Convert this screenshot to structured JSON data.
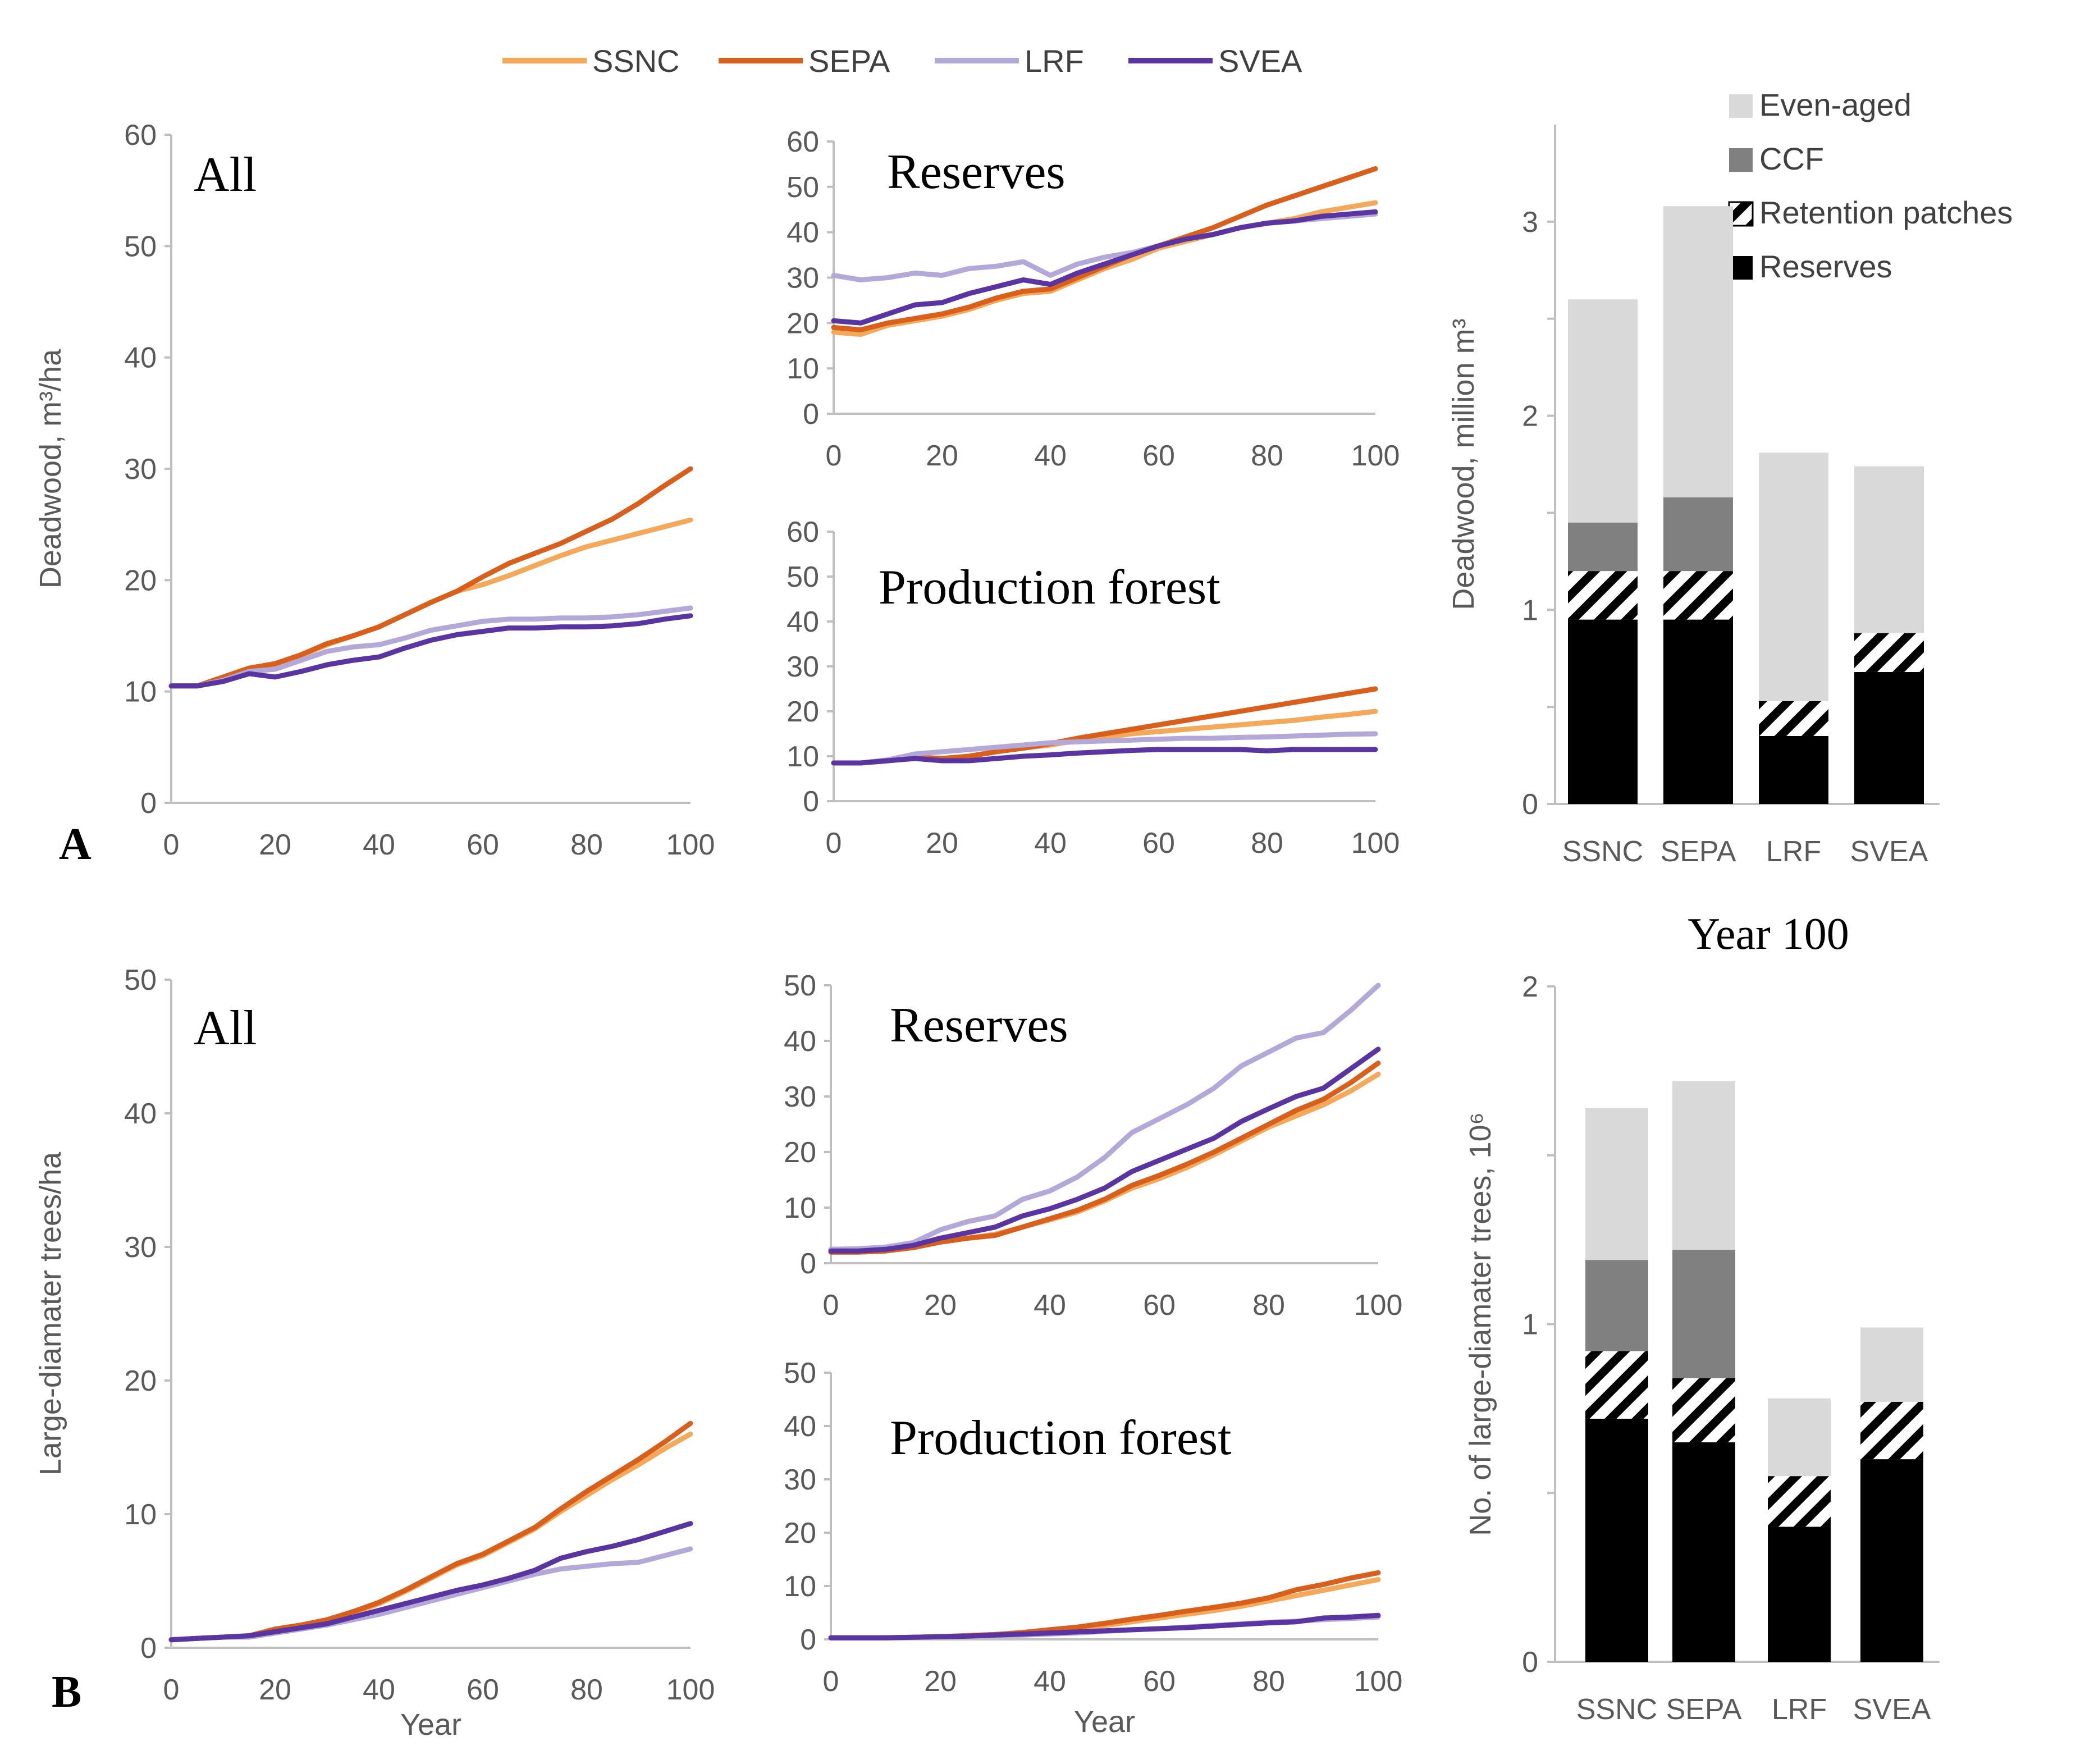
{
  "colors": {
    "SSNC": "#f4a85a",
    "SEPA": "#d9601c",
    "LRF": "#b4a8d8",
    "SVEA": "#5a34a0",
    "Even-aged": "#d9d9d9",
    "CCF": "#808080",
    "Retention patches": "#000000",
    "Reserves": "#000000"
  },
  "legend": {
    "series": [
      "SSNC",
      "SEPA",
      "LRF",
      "SVEA"
    ],
    "bar_components": [
      "Even-aged",
      "CCF",
      "Retention patches",
      "Reserves"
    ]
  },
  "panel_letters": {
    "a": "A",
    "b": "B"
  },
  "chart_data": [
    {
      "id": "a_all",
      "type": "line",
      "title": "All",
      "xlabel": "",
      "ylabel": "Deadwood, m³/ha",
      "xlim": [
        0,
        100
      ],
      "ylim": [
        0,
        60
      ],
      "xticks": [
        0,
        20,
        40,
        60,
        80,
        100
      ],
      "yticks": [
        0,
        10,
        20,
        30,
        40,
        50,
        60
      ],
      "x": [
        0,
        5,
        10,
        15,
        20,
        25,
        30,
        35,
        40,
        45,
        50,
        55,
        60,
        65,
        70,
        75,
        80,
        85,
        90,
        95,
        100
      ],
      "series": [
        {
          "name": "SSNC",
          "values": [
            10.5,
            10.5,
            11.2,
            12.0,
            12.4,
            13.2,
            14.2,
            15.0,
            15.8,
            16.9,
            18.0,
            19.0,
            19.6,
            20.4,
            21.3,
            22.2,
            23.0,
            23.6,
            24.2,
            24.8,
            25.4
          ]
        },
        {
          "name": "SEPA",
          "values": [
            10.5,
            10.5,
            11.3,
            12.1,
            12.5,
            13.3,
            14.3,
            15.0,
            15.8,
            16.9,
            18.0,
            19.0,
            20.3,
            21.5,
            22.4,
            23.3,
            24.4,
            25.5,
            26.9,
            28.5,
            30.0
          ]
        },
        {
          "name": "LRF",
          "values": [
            10.5,
            10.5,
            11.0,
            11.8,
            12.0,
            12.8,
            13.6,
            14.0,
            14.2,
            14.8,
            15.5,
            15.9,
            16.3,
            16.5,
            16.5,
            16.6,
            16.6,
            16.7,
            16.9,
            17.2,
            17.5
          ]
        },
        {
          "name": "SVEA",
          "values": [
            10.5,
            10.5,
            10.9,
            11.6,
            11.3,
            11.8,
            12.4,
            12.8,
            13.1,
            13.9,
            14.6,
            15.1,
            15.4,
            15.7,
            15.7,
            15.8,
            15.8,
            15.9,
            16.1,
            16.5,
            16.8
          ]
        }
      ]
    },
    {
      "id": "a_reserves",
      "type": "line",
      "title": "Reserves",
      "xlim": [
        0,
        100
      ],
      "ylim": [
        0,
        60
      ],
      "xticks": [
        0,
        20,
        40,
        60,
        80,
        100
      ],
      "yticks": [
        0,
        10,
        20,
        30,
        40,
        50,
        60
      ],
      "x": [
        0,
        5,
        10,
        15,
        20,
        25,
        30,
        35,
        40,
        45,
        50,
        55,
        60,
        65,
        70,
        75,
        80,
        85,
        90,
        95,
        100
      ],
      "series": [
        {
          "name": "SSNC",
          "values": [
            18.0,
            17.5,
            19.5,
            20.5,
            21.5,
            23.0,
            25.0,
            26.5,
            27.0,
            29.5,
            32.0,
            34.0,
            36.5,
            38.0,
            39.5,
            41.0,
            42.0,
            43.0,
            44.5,
            45.5,
            46.5
          ]
        },
        {
          "name": "SEPA",
          "values": [
            19.0,
            18.5,
            20.0,
            21.0,
            22.0,
            23.5,
            25.5,
            27.0,
            27.5,
            30.0,
            32.5,
            35.0,
            37.0,
            39.0,
            41.0,
            43.5,
            46.0,
            48.0,
            50.0,
            52.0,
            54.0
          ]
        },
        {
          "name": "LRF",
          "values": [
            30.5,
            29.5,
            30.0,
            31.0,
            30.5,
            32.0,
            32.5,
            33.5,
            30.5,
            33.0,
            34.5,
            35.5,
            37.0,
            38.5,
            39.5,
            41.0,
            42.0,
            42.5,
            43.0,
            43.5,
            44.0
          ]
        },
        {
          "name": "SVEA",
          "values": [
            20.5,
            20.0,
            22.0,
            24.0,
            24.5,
            26.5,
            28.0,
            29.5,
            28.5,
            31.0,
            33.0,
            35.0,
            37.0,
            38.5,
            39.5,
            41.0,
            42.0,
            42.5,
            43.5,
            44.0,
            44.5
          ]
        }
      ]
    },
    {
      "id": "a_production",
      "type": "line",
      "title": "Production forest",
      "xlim": [
        0,
        100
      ],
      "ylim": [
        0,
        60
      ],
      "xticks": [
        0,
        20,
        40,
        60,
        80,
        100
      ],
      "yticks": [
        0,
        10,
        20,
        30,
        40,
        50,
        60
      ],
      "x": [
        0,
        5,
        10,
        15,
        20,
        25,
        30,
        35,
        40,
        45,
        50,
        55,
        60,
        65,
        70,
        75,
        80,
        85,
        90,
        95,
        100
      ],
      "series": [
        {
          "name": "SSNC",
          "values": [
            8.5,
            8.5,
            9.0,
            9.8,
            9.5,
            10.0,
            11.0,
            11.8,
            12.5,
            13.5,
            14.2,
            15.0,
            15.5,
            16.0,
            16.5,
            17.0,
            17.5,
            18.0,
            18.7,
            19.3,
            20.0
          ]
        },
        {
          "name": "SEPA",
          "values": [
            8.5,
            8.5,
            9.0,
            9.8,
            9.5,
            10.0,
            11.0,
            11.8,
            12.8,
            14.0,
            15.0,
            16.0,
            17.0,
            18.0,
            19.0,
            20.0,
            21.0,
            22.0,
            23.0,
            24.0,
            25.0
          ]
        },
        {
          "name": "LRF",
          "values": [
            8.5,
            8.5,
            9.2,
            10.5,
            11.0,
            11.5,
            12.0,
            12.5,
            13.0,
            13.2,
            13.4,
            13.6,
            13.8,
            14.0,
            14.0,
            14.2,
            14.3,
            14.5,
            14.7,
            14.9,
            15.0
          ]
        },
        {
          "name": "SVEA",
          "values": [
            8.5,
            8.5,
            9.0,
            9.5,
            9.0,
            9.0,
            9.5,
            10.0,
            10.3,
            10.7,
            11.0,
            11.3,
            11.5,
            11.5,
            11.5,
            11.5,
            11.2,
            11.5,
            11.5,
            11.5,
            11.5
          ]
        }
      ]
    },
    {
      "id": "a_bar",
      "type": "bar",
      "stacked": true,
      "title": "",
      "ylabel": "Deadwood, million m³",
      "categories": [
        "SSNC",
        "SEPA",
        "LRF",
        "SVEA"
      ],
      "ylim": [
        0,
        3.5
      ],
      "yticks": [
        0,
        1,
        2,
        3
      ],
      "series": [
        {
          "name": "Reserves",
          "values": [
            0.95,
            0.95,
            0.35,
            0.68
          ]
        },
        {
          "name": "Retention patches",
          "values": [
            0.25,
            0.25,
            0.18,
            0.2
          ]
        },
        {
          "name": "CCF",
          "values": [
            0.25,
            0.38,
            0.0,
            0.0
          ]
        },
        {
          "name": "Even-aged",
          "values": [
            1.15,
            1.5,
            1.28,
            0.86
          ]
        }
      ]
    },
    {
      "id": "b_all",
      "type": "line",
      "title": "All",
      "xlabel": "Year",
      "ylabel": "Large-diamater trees/ha",
      "xlim": [
        0,
        100
      ],
      "ylim": [
        0,
        50
      ],
      "xticks": [
        0,
        20,
        40,
        60,
        80,
        100
      ],
      "yticks": [
        0,
        10,
        20,
        30,
        40,
        50
      ],
      "x": [
        0,
        5,
        10,
        15,
        20,
        25,
        30,
        35,
        40,
        45,
        50,
        55,
        60,
        65,
        70,
        75,
        80,
        85,
        90,
        95,
        100
      ],
      "series": [
        {
          "name": "SSNC",
          "values": [
            0.6,
            0.7,
            0.8,
            0.9,
            1.3,
            1.6,
            2.0,
            2.6,
            3.3,
            4.2,
            5.2,
            6.2,
            6.9,
            7.9,
            8.9,
            10.2,
            11.4,
            12.6,
            13.7,
            14.9,
            16.0
          ]
        },
        {
          "name": "SEPA",
          "values": [
            0.6,
            0.7,
            0.8,
            0.9,
            1.4,
            1.7,
            2.1,
            2.7,
            3.4,
            4.3,
            5.3,
            6.3,
            7.0,
            8.0,
            9.0,
            10.4,
            11.7,
            12.9,
            14.1,
            15.4,
            16.8
          ]
        },
        {
          "name": "LRF",
          "values": [
            0.6,
            0.7,
            0.8,
            0.8,
            1.1,
            1.4,
            1.7,
            2.1,
            2.5,
            3.0,
            3.5,
            4.0,
            4.5,
            5.0,
            5.5,
            5.9,
            6.1,
            6.3,
            6.4,
            6.9,
            7.4
          ]
        },
        {
          "name": "SVEA",
          "values": [
            0.6,
            0.7,
            0.8,
            0.9,
            1.2,
            1.5,
            1.8,
            2.3,
            2.8,
            3.3,
            3.8,
            4.3,
            4.7,
            5.2,
            5.8,
            6.7,
            7.2,
            7.6,
            8.1,
            8.7,
            9.3
          ]
        }
      ]
    },
    {
      "id": "b_reserves",
      "type": "line",
      "title": "Reserves",
      "xlabel": "",
      "xlim": [
        0,
        100
      ],
      "ylim": [
        0,
        50
      ],
      "xticks": [
        0,
        20,
        40,
        60,
        80,
        100
      ],
      "yticks": [
        0,
        10,
        20,
        30,
        40,
        50
      ],
      "x": [
        0,
        5,
        10,
        15,
        20,
        25,
        30,
        35,
        40,
        45,
        50,
        55,
        60,
        65,
        70,
        75,
        80,
        85,
        90,
        95,
        100
      ],
      "series": [
        {
          "name": "SSNC",
          "values": [
            2.0,
            2.0,
            2.2,
            2.8,
            3.8,
            4.5,
            5.2,
            6.5,
            7.8,
            9.2,
            11.2,
            13.5,
            15.2,
            17.2,
            19.5,
            22.0,
            24.5,
            26.5,
            28.5,
            31.0,
            34.0
          ]
        },
        {
          "name": "SEPA",
          "values": [
            2.0,
            2.0,
            2.2,
            2.8,
            3.8,
            4.5,
            5.0,
            6.5,
            8.0,
            9.5,
            11.5,
            14.0,
            15.8,
            17.8,
            20.0,
            22.5,
            25.0,
            27.5,
            29.5,
            32.5,
            36.0
          ]
        },
        {
          "name": "LRF",
          "values": [
            2.5,
            2.6,
            2.9,
            3.7,
            6.0,
            7.5,
            8.5,
            11.5,
            13.0,
            15.5,
            19.0,
            23.5,
            26.0,
            28.5,
            31.5,
            35.5,
            38.0,
            40.5,
            41.5,
            45.5,
            50.0
          ]
        },
        {
          "name": "SVEA",
          "values": [
            2.2,
            2.2,
            2.5,
            3.2,
            4.5,
            5.5,
            6.5,
            8.5,
            9.8,
            11.5,
            13.5,
            16.5,
            18.5,
            20.5,
            22.5,
            25.5,
            27.8,
            30.0,
            31.5,
            35.0,
            38.5
          ]
        }
      ]
    },
    {
      "id": "b_production",
      "type": "line",
      "title": "Production forest",
      "xlabel": "Year",
      "xlim": [
        0,
        100
      ],
      "ylim": [
        0,
        50
      ],
      "xticks": [
        0,
        20,
        40,
        60,
        80,
        100
      ],
      "yticks": [
        0,
        10,
        20,
        30,
        40,
        50
      ],
      "x": [
        0,
        5,
        10,
        15,
        20,
        25,
        30,
        35,
        40,
        45,
        50,
        55,
        60,
        65,
        70,
        75,
        80,
        85,
        90,
        95,
        100
      ],
      "series": [
        {
          "name": "SSNC",
          "values": [
            0.3,
            0.3,
            0.3,
            0.4,
            0.5,
            0.7,
            0.9,
            1.2,
            1.6,
            2.0,
            2.6,
            3.3,
            4.0,
            4.7,
            5.4,
            6.2,
            7.2,
            8.2,
            9.2,
            10.2,
            11.2
          ]
        },
        {
          "name": "SEPA",
          "values": [
            0.3,
            0.3,
            0.3,
            0.4,
            0.5,
            0.7,
            0.9,
            1.3,
            1.8,
            2.3,
            3.0,
            3.8,
            4.5,
            5.3,
            6.0,
            6.8,
            7.8,
            9.3,
            10.3,
            11.5,
            12.5
          ]
        },
        {
          "name": "LRF",
          "values": [
            0.3,
            0.3,
            0.3,
            0.4,
            0.5,
            0.6,
            0.7,
            0.8,
            1.0,
            1.2,
            1.5,
            1.8,
            2.0,
            2.3,
            2.6,
            2.9,
            3.2,
            3.4,
            3.7,
            3.9,
            4.2
          ]
        },
        {
          "name": "SVEA",
          "values": [
            0.3,
            0.3,
            0.3,
            0.4,
            0.5,
            0.6,
            0.8,
            1.0,
            1.2,
            1.4,
            1.6,
            1.8,
            2.0,
            2.2,
            2.5,
            2.8,
            3.1,
            3.3,
            4.0,
            4.2,
            4.5
          ]
        }
      ]
    },
    {
      "id": "b_bar",
      "type": "bar",
      "stacked": true,
      "title": "Year 100",
      "ylabel": "No. of large-diamater trees, 10⁶",
      "categories": [
        "SSNC",
        "SEPA",
        "LRF",
        "SVEA"
      ],
      "ylim": [
        0,
        2
      ],
      "yticks": [
        0,
        1,
        2
      ],
      "series": [
        {
          "name": "Reserves",
          "values": [
            0.72,
            0.65,
            0.4,
            0.6
          ]
        },
        {
          "name": "Retention patches",
          "values": [
            0.2,
            0.19,
            0.15,
            0.17
          ]
        },
        {
          "name": "CCF",
          "values": [
            0.27,
            0.38,
            0.0,
            0.0
          ]
        },
        {
          "name": "Even-aged",
          "values": [
            0.45,
            0.5,
            0.23,
            0.22
          ]
        }
      ]
    }
  ]
}
